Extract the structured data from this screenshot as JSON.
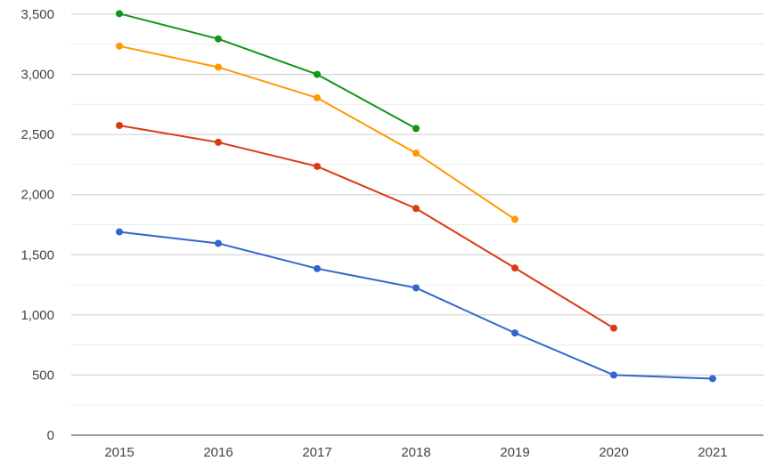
{
  "chart_data": {
    "type": "line",
    "title": "",
    "xlabel": "",
    "ylabel": "",
    "categories": [
      "2015",
      "2016",
      "2017",
      "2018",
      "2019",
      "2020",
      "2021"
    ],
    "ylim": [
      0,
      3500
    ],
    "y_ticks": [
      0,
      500,
      1000,
      1500,
      2000,
      2500,
      3000,
      3500
    ],
    "y_tick_labels": [
      "0",
      "500",
      "1,000",
      "1,500",
      "2,000",
      "2,500",
      "3,000",
      "3,500"
    ],
    "grid": true,
    "legend": "none",
    "series": [
      {
        "color": "#3366cc",
        "values": [
          1690,
          1595,
          1385,
          1225,
          850,
          500,
          470
        ]
      },
      {
        "color": "#dc3912",
        "values": [
          2575,
          2435,
          2235,
          1885,
          1390,
          890,
          null
        ]
      },
      {
        "color": "#ff9900",
        "values": [
          3235,
          3060,
          2805,
          2345,
          1795,
          null,
          null
        ]
      },
      {
        "color": "#109618",
        "values": [
          3505,
          3295,
          3000,
          2550,
          null,
          null,
          null
        ]
      }
    ]
  }
}
